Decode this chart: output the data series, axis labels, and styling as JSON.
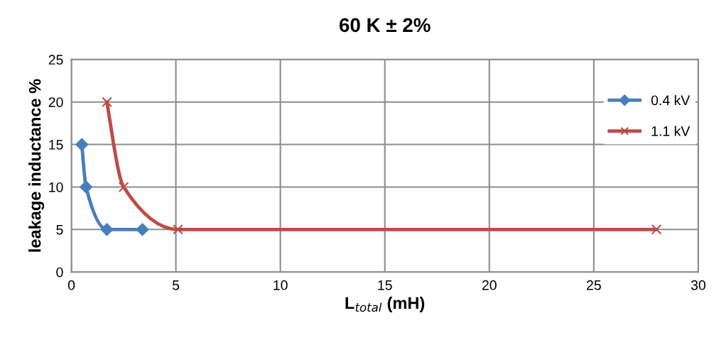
{
  "chart_data": {
    "type": "line",
    "title": "60 K ± 2%",
    "xlabel": "L$_{total}$ (mH)",
    "ylabel": "leakage inductance %",
    "series": [
      {
        "name": "0.4 kV",
        "color": "#4a7ebb",
        "marker": "diamond",
        "x": [
          0.5,
          0.7,
          1.7,
          3.4
        ],
        "values": [
          15,
          10,
          5,
          5
        ]
      },
      {
        "name": "1.1 kV",
        "color": "#be4b48",
        "marker": "cross",
        "x": [
          1.7,
          2.5,
          5.1,
          28
        ],
        "values": [
          20,
          10,
          5,
          5
        ]
      }
    ],
    "xlim": [
      0,
      30
    ],
    "xticks": [
      0,
      5,
      10,
      15,
      20,
      25,
      30
    ],
    "ylim": [
      0,
      25
    ],
    "yticks": [
      0,
      5,
      10,
      15,
      20,
      25
    ],
    "grid": true,
    "legend": "right",
    "line_style": "solid"
  }
}
